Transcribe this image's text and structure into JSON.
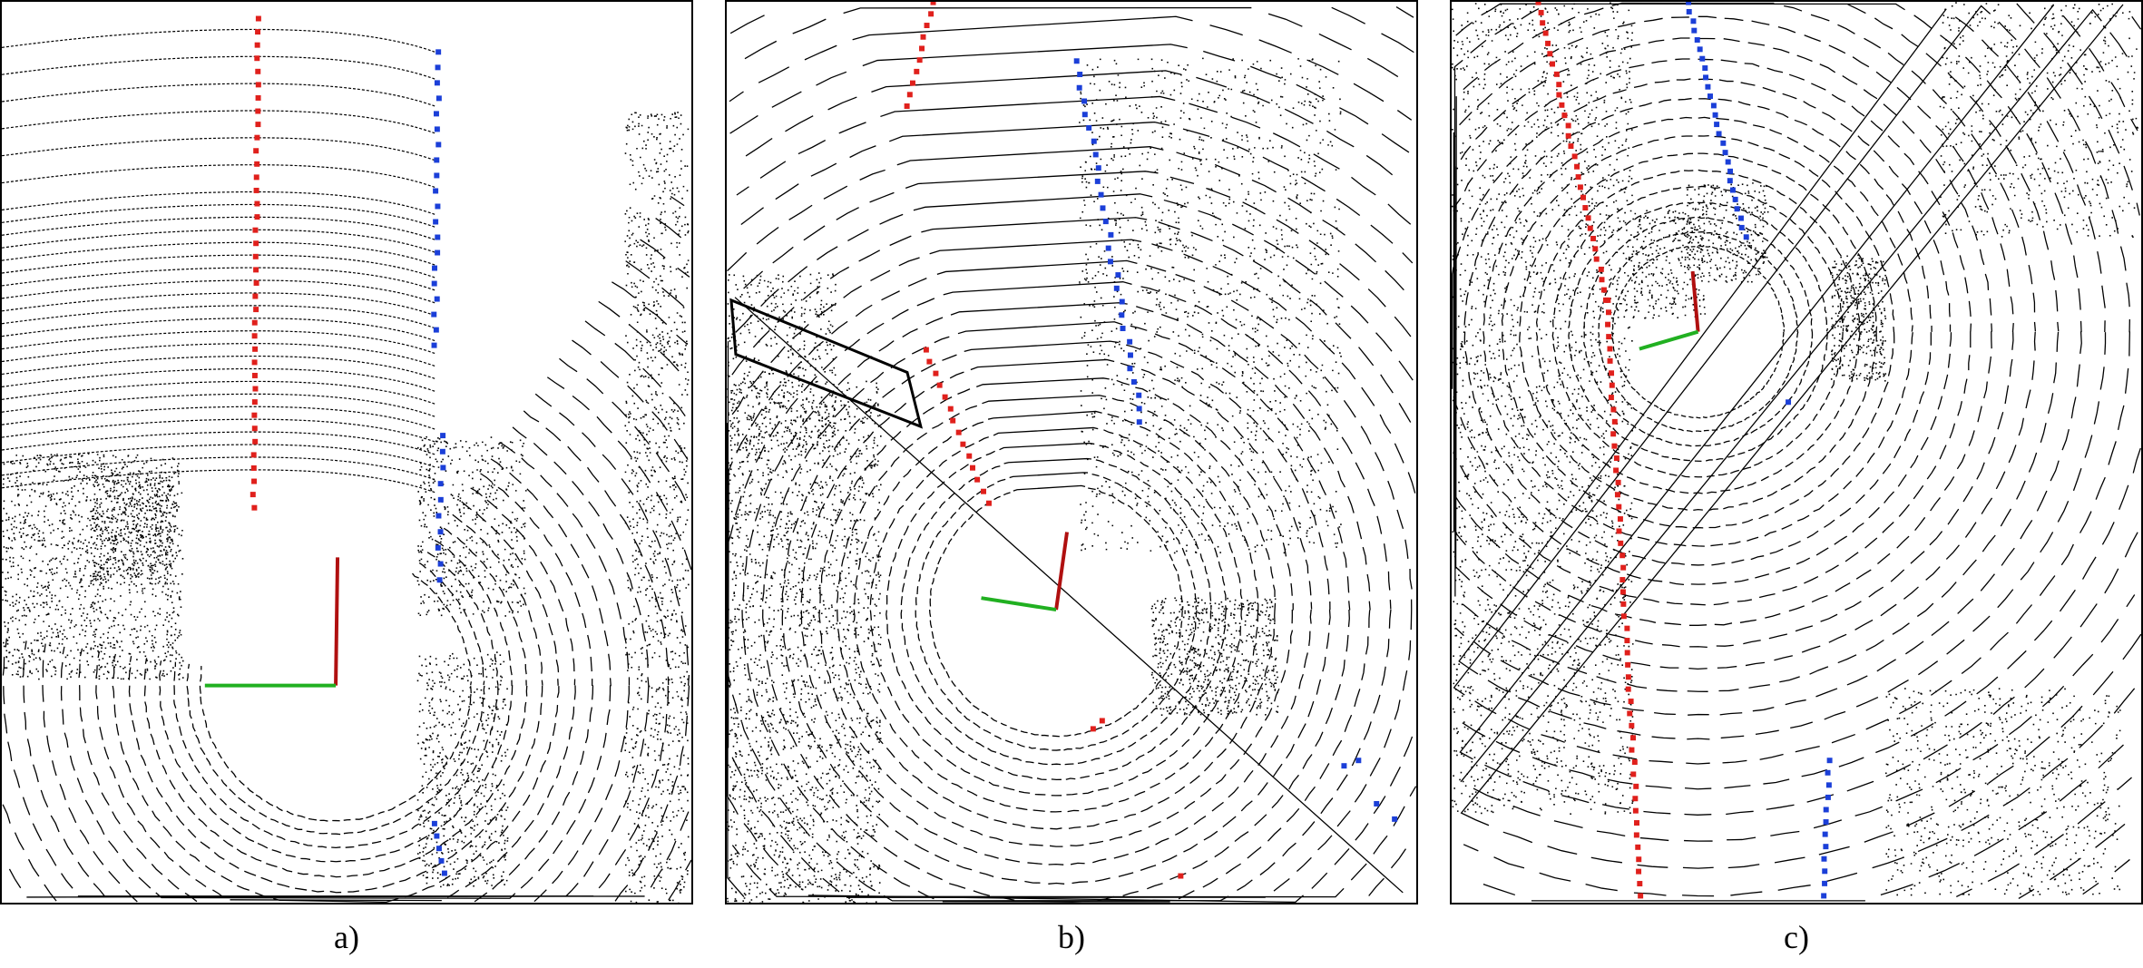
{
  "captions": {
    "a": "a)",
    "b": "b)",
    "c": "c)"
  },
  "colors": {
    "background": "#ffffff",
    "scan_points": "#000000",
    "left_boundary": "#e0201c",
    "right_boundary": "#1b3fd8",
    "axis_x": "#b01010",
    "axis_y": "#21b021"
  }
}
